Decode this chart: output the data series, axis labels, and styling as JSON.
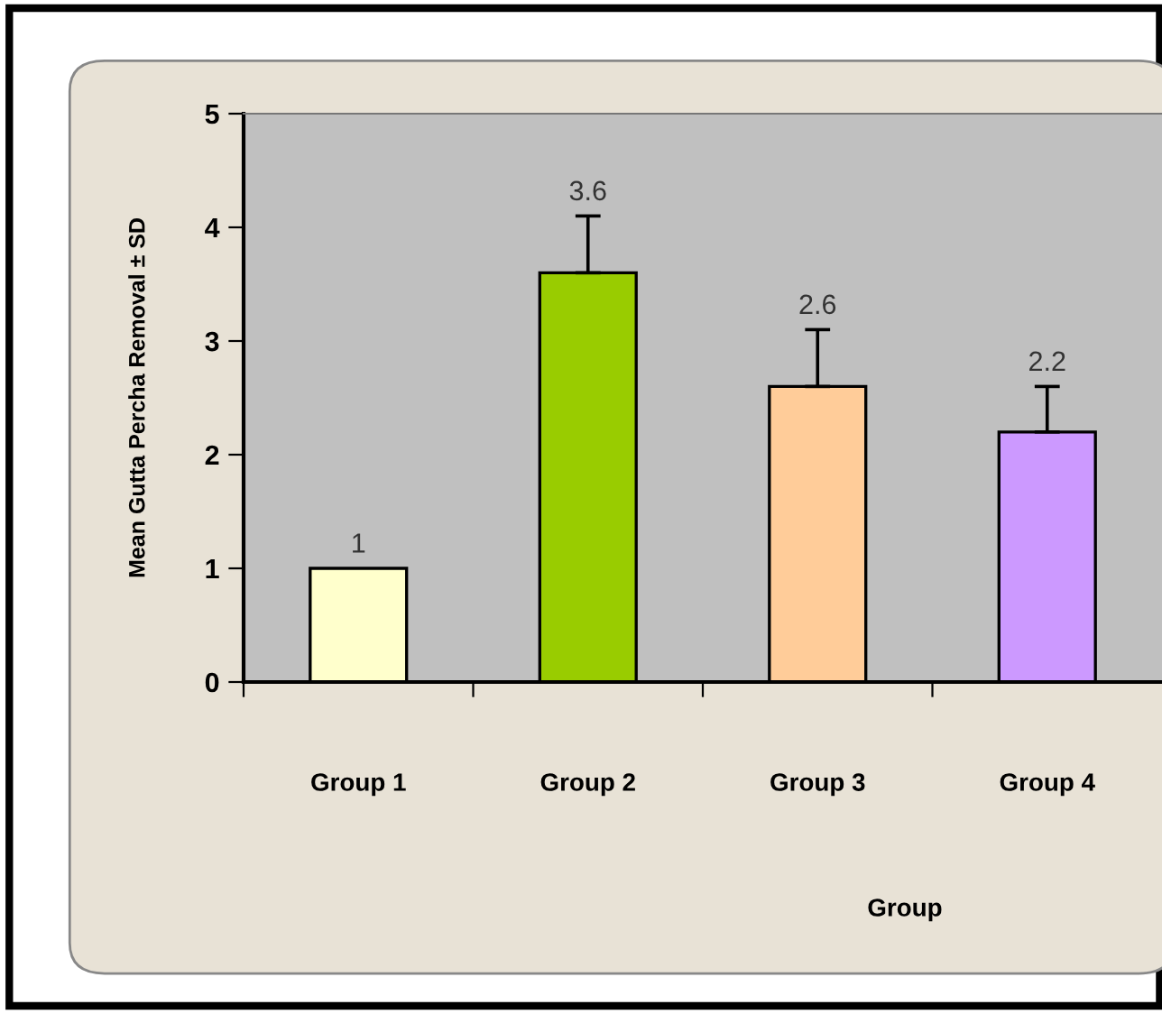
{
  "chart_data": {
    "type": "bar",
    "xlabel": "Group",
    "ylabel": "Mean Gutta Percha Removal ± SD",
    "categories": [
      "Group 1",
      "Group 2",
      "Group 3",
      "Group 4"
    ],
    "values": [
      1,
      3.6,
      2.6,
      2.2
    ],
    "errors": [
      null,
      0.5,
      0.5,
      0.4
    ],
    "colors": [
      "#ffffcc",
      "#99cc00",
      "#ffcc99",
      "#cc99ff"
    ],
    "ylim": [
      0,
      5
    ],
    "yticks": [
      0,
      1,
      2,
      3,
      4,
      5
    ],
    "grid": false,
    "data_labels": true
  }
}
